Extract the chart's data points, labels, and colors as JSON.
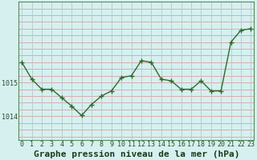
{
  "hours": [
    0,
    1,
    2,
    3,
    4,
    5,
    6,
    7,
    8,
    9,
    10,
    11,
    12,
    13,
    14,
    15,
    16,
    17,
    18,
    19,
    20,
    21,
    22,
    23
  ],
  "pressure": [
    1015.6,
    1015.1,
    1014.8,
    1014.8,
    1014.55,
    1014.3,
    1014.02,
    1014.35,
    1014.6,
    1014.75,
    1015.15,
    1015.2,
    1015.65,
    1015.6,
    1015.1,
    1015.05,
    1014.8,
    1014.8,
    1015.05,
    1014.75,
    1014.75,
    1016.2,
    1016.55,
    1016.6
  ],
  "line_color": "#2d6b2d",
  "marker": "+",
  "bg_color": "#d6f0f0",
  "hgrid_color": "#d8a0a0",
  "vgrid_color": "#b8c8c8",
  "xlabel": "Graphe pression niveau de la mer (hPa)",
  "ytick_labels": [
    "1014",
    "1015"
  ],
  "ytick_vals": [
    1014.0,
    1015.0
  ],
  "ylim": [
    1013.3,
    1017.4
  ],
  "xlim": [
    -0.3,
    23.3
  ],
  "xlabel_fontsize": 8,
  "xlabel_fontfamily": "monospace",
  "tick_fontsize": 6,
  "xlabel_bold": true
}
